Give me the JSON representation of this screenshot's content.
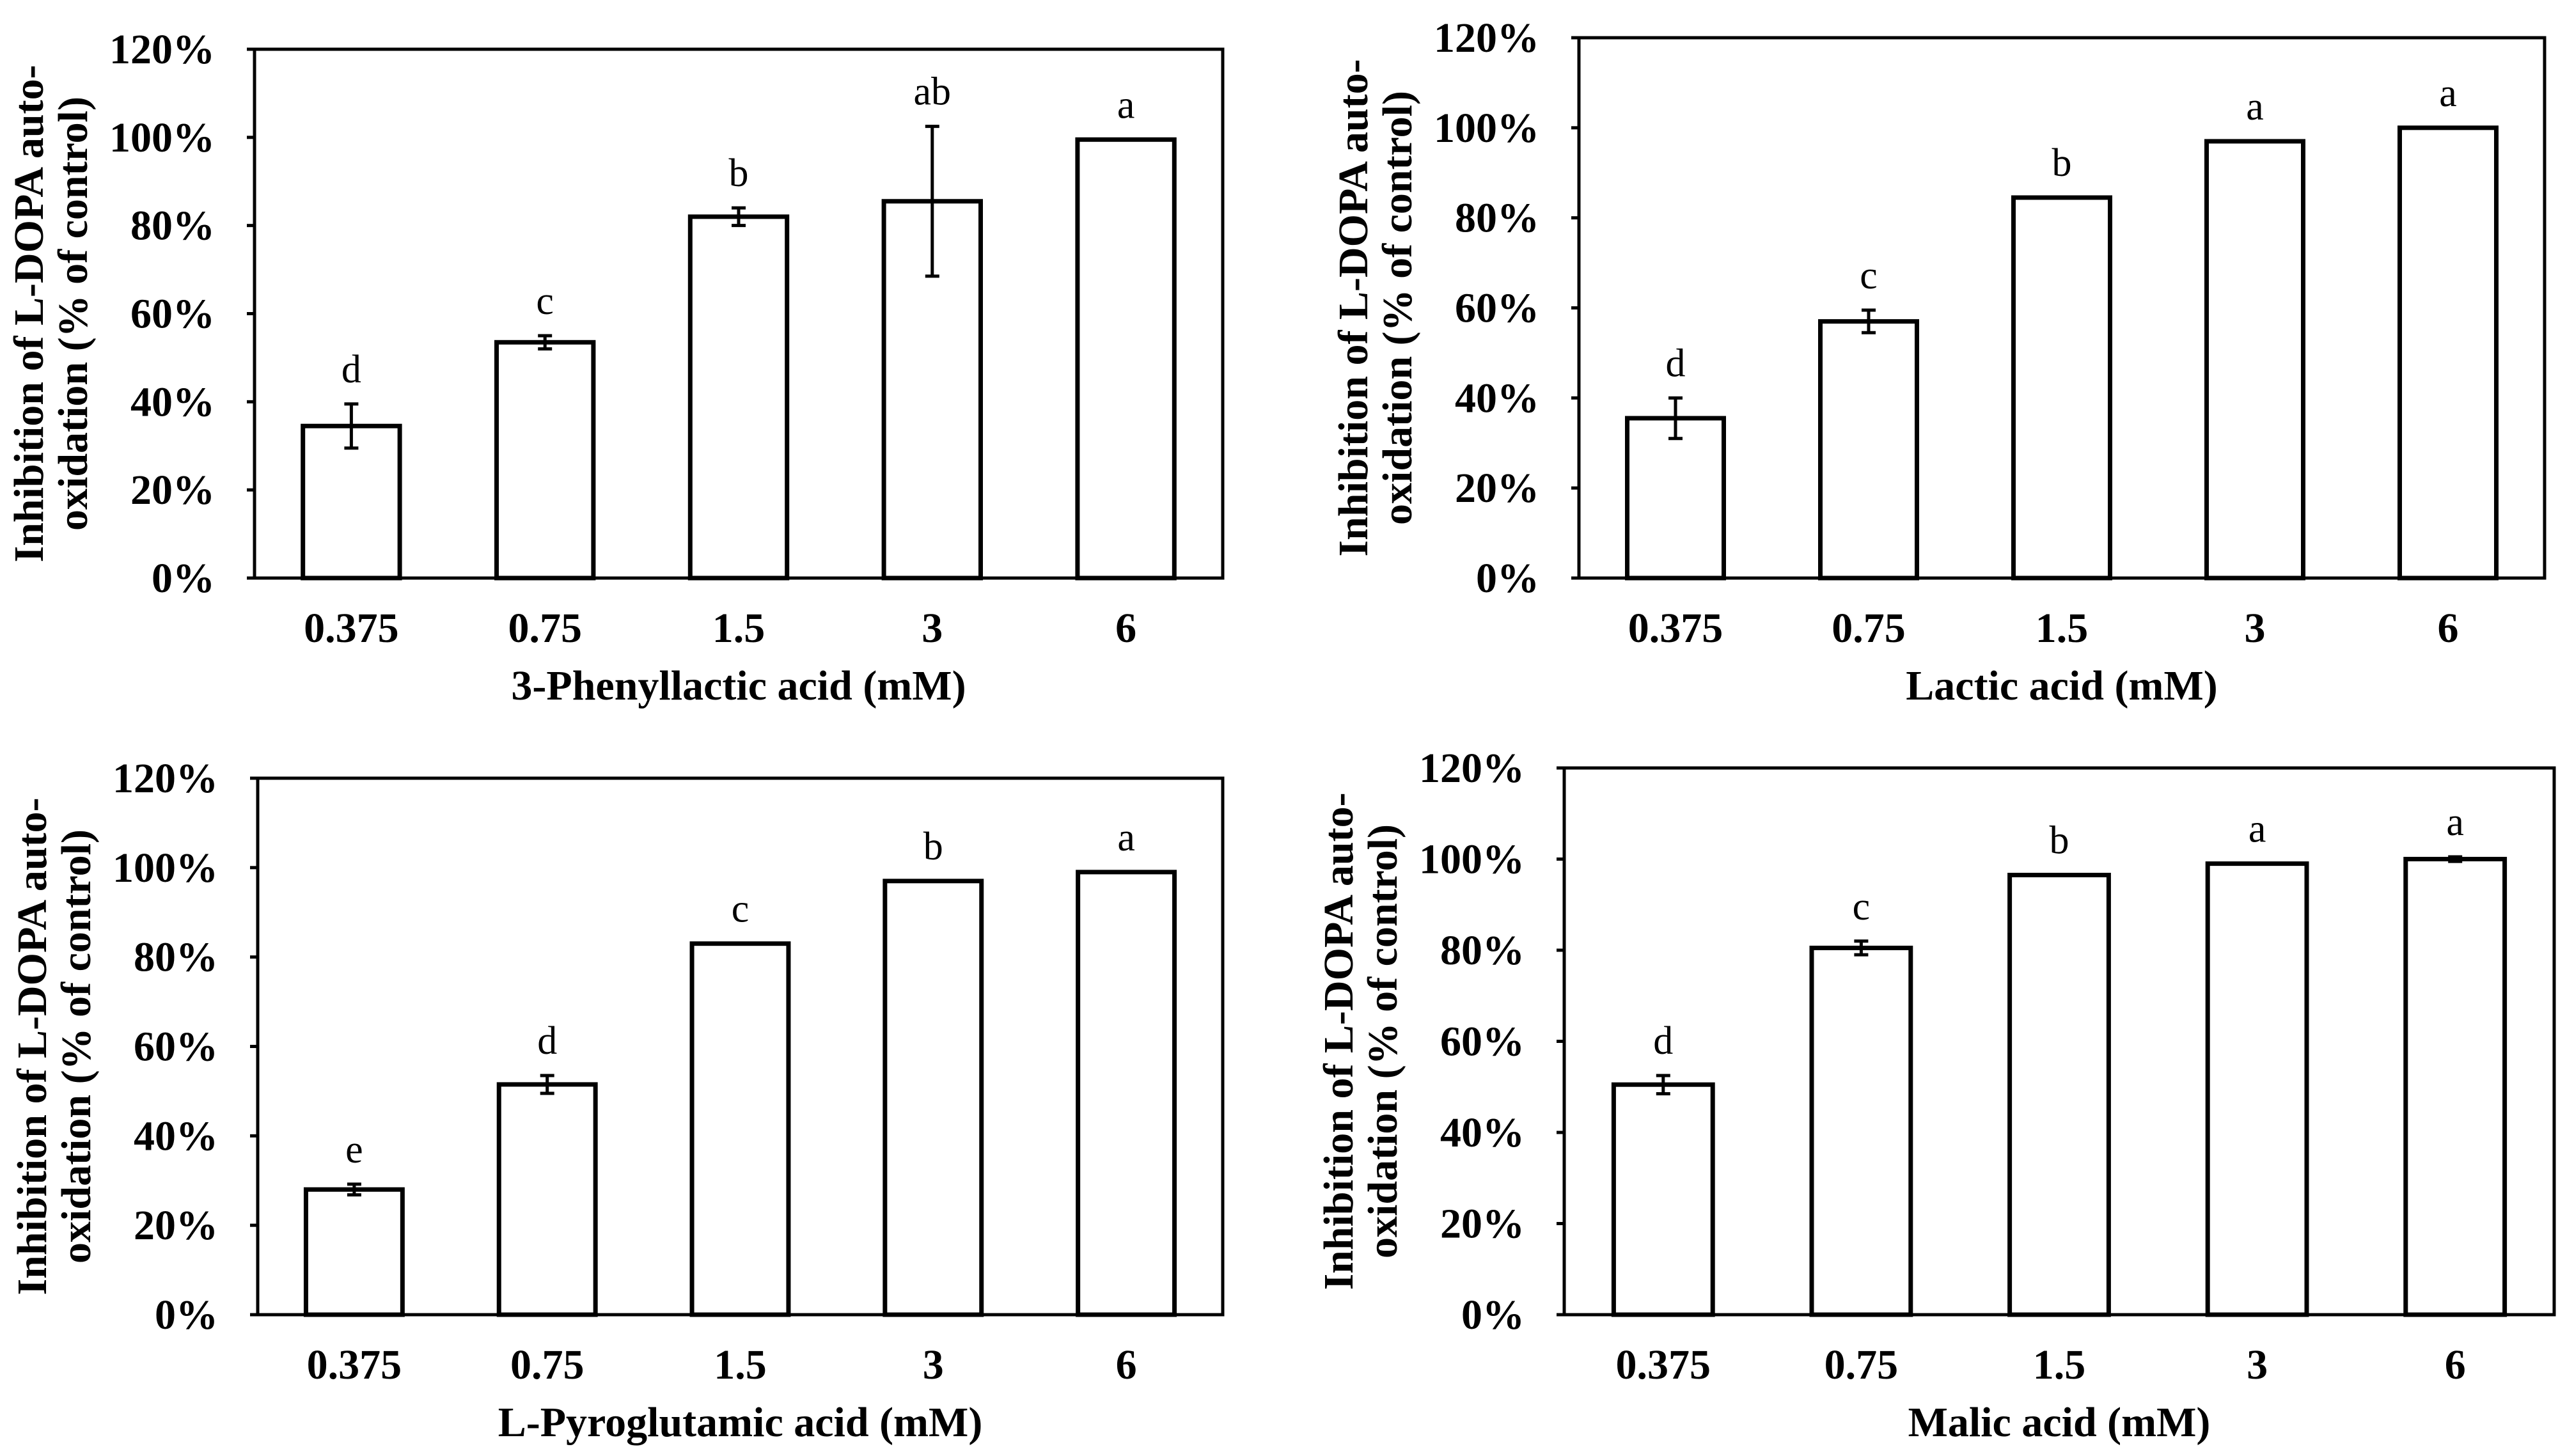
{
  "colors": {
    "bar_fill": "#ffffff",
    "outline": "#000000"
  },
  "chart_data": [
    {
      "type": "bar",
      "categories": [
        "0.375",
        "0.75",
        "1.5",
        "3",
        "6"
      ],
      "values": [
        34.5,
        53.5,
        82,
        85.5,
        99.5
      ],
      "error": [
        5,
        1.5,
        2,
        17,
        0
      ],
      "significance_letters": [
        "d",
        "c",
        "b",
        "ab",
        "a"
      ],
      "xlabel": "3-Phenyllactic acid (mM)",
      "ylabel": [
        "Inhibition of L-DOPA auto-",
        "oxidation (% of control)"
      ],
      "ylim": [
        0,
        120
      ],
      "yticks": [
        0,
        20,
        40,
        60,
        80,
        100,
        120
      ],
      "ytick_labels": [
        "0%",
        "20%",
        "40%",
        "60%",
        "80%",
        "100%",
        "120%"
      ],
      "grid": false
    },
    {
      "type": "bar",
      "categories": [
        "0.375",
        "0.75",
        "1.5",
        "3",
        "6"
      ],
      "values": [
        35.5,
        57,
        84.5,
        97,
        100
      ],
      "error": [
        4.5,
        2.5,
        0,
        0,
        0
      ],
      "significance_letters": [
        "d",
        "c",
        "b",
        "a",
        "a"
      ],
      "xlabel": "Lactic acid (mM)",
      "ylabel": [
        "Inhibition of L-DOPA auto-",
        "oxidation (% of control)"
      ],
      "ylim": [
        0,
        120
      ],
      "yticks": [
        0,
        20,
        40,
        60,
        80,
        100,
        120
      ],
      "ytick_labels": [
        "0%",
        "20%",
        "40%",
        "60%",
        "80%",
        "100%",
        "120%"
      ],
      "grid": false
    },
    {
      "type": "bar",
      "categories": [
        "0.375",
        "0.75",
        "1.5",
        "3",
        "6"
      ],
      "values": [
        28,
        51.5,
        83,
        97,
        99
      ],
      "error": [
        1.2,
        2,
        0,
        0,
        0
      ],
      "significance_letters": [
        "e",
        "d",
        "c",
        "b",
        "a"
      ],
      "xlabel": "L-Pyroglutamic acid (mM)",
      "ylabel": [
        "Inhibition of L-DOPA auto-",
        "oxidation (% of control)"
      ],
      "ylim": [
        0,
        120
      ],
      "yticks": [
        0,
        20,
        40,
        60,
        80,
        100,
        120
      ],
      "ytick_labels": [
        "0%",
        "20%",
        "40%",
        "60%",
        "80%",
        "100%",
        "120%"
      ],
      "grid": false
    },
    {
      "type": "bar",
      "categories": [
        "0.375",
        "0.75",
        "1.5",
        "3",
        "6"
      ],
      "values": [
        50.5,
        80.5,
        96.5,
        99,
        100
      ],
      "error": [
        2,
        1.5,
        0,
        0,
        0.5
      ],
      "significance_letters": [
        "d",
        "c",
        "b",
        "a",
        "a"
      ],
      "xlabel": "Malic acid (mM)",
      "ylabel": [
        "Inhibition of L-DOPA auto-",
        "oxidation (% of control)"
      ],
      "ylim": [
        0,
        120
      ],
      "yticks": [
        0,
        20,
        40,
        60,
        80,
        100,
        120
      ],
      "ytick_labels": [
        "0%",
        "20%",
        "40%",
        "60%",
        "80%",
        "100%",
        "120%"
      ],
      "grid": false
    }
  ]
}
